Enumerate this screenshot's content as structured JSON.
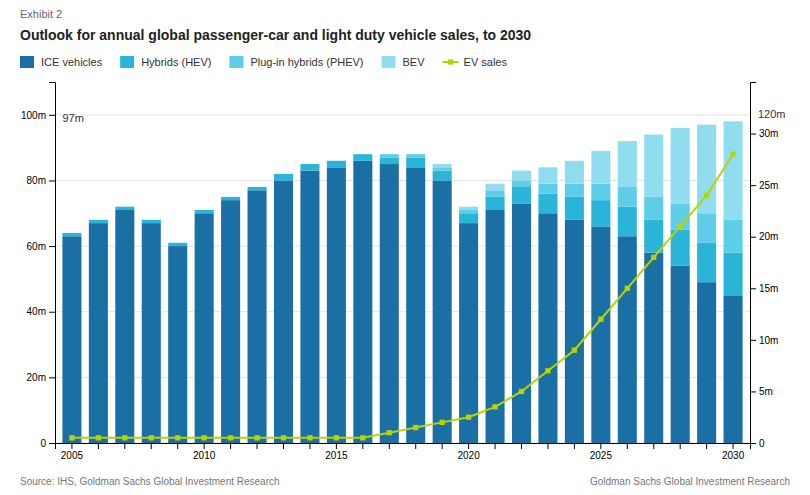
{
  "chart_data": {
    "type": "bar",
    "subtitle": "Exhibit 2",
    "title": "Outlook for annual global passenger-car and light duty vehicle sales, to 2030",
    "source": [
      "Source: IHS, Goldman Sachs Global Investment Research",
      "Goldman Sachs Global Investment Research"
    ],
    "categories": [
      "2005",
      null,
      null,
      null,
      null,
      "2010",
      null,
      null,
      null,
      null,
      "2015",
      null,
      null,
      null,
      null,
      "2020",
      null,
      null,
      null,
      null,
      "2025",
      null,
      null,
      null,
      null,
      "2030"
    ],
    "stacked": true,
    "grid": true,
    "legend": "top",
    "series": [
      {
        "name": "ICE vehicles",
        "color": "#1a6fa5",
        "values": [
          63,
          67,
          71,
          67,
          60,
          70,
          74,
          77,
          80,
          83,
          84,
          86,
          85,
          84,
          80,
          67,
          71,
          73,
          70,
          68,
          66,
          63,
          58,
          54,
          49,
          45
        ]
      },
      {
        "name": "Hybrids (HEV)",
        "color": "#2ab5d8",
        "values": [
          1,
          1,
          1,
          1,
          1,
          1,
          1,
          1,
          2,
          2,
          2,
          2,
          2,
          3,
          3,
          3,
          4,
          5,
          6,
          7,
          8,
          9,
          10,
          11,
          12,
          13
        ]
      },
      {
        "name": "Plug-in hybrids (PHEV)",
        "color": "#5ecde8",
        "values": [
          0,
          0,
          0,
          0,
          0,
          0,
          0,
          0,
          0,
          0,
          0,
          0,
          1,
          1,
          1,
          1,
          2,
          2,
          3,
          4,
          5,
          6,
          7,
          8,
          9,
          10
        ]
      },
      {
        "name": "BEV",
        "color": "#90ddf0",
        "values": [
          0,
          0,
          0,
          0,
          0,
          0,
          0,
          0,
          0,
          0,
          0,
          0,
          0,
          0,
          1,
          1,
          2,
          3,
          5,
          7,
          10,
          14,
          19,
          23,
          27,
          30
        ]
      },
      {
        "name": "EV sales",
        "type": "line",
        "axis": "y2",
        "marker": "square",
        "color": "#b8d400",
        "values": [
          0.5,
          0.5,
          0.5,
          0.5,
          0.5,
          0.5,
          0.5,
          0.5,
          0.5,
          0.5,
          0.5,
          0.5,
          1.0,
          1.5,
          2.0,
          2.5,
          3.5,
          5.0,
          7.0,
          9.0,
          12.0,
          15.0,
          18.0,
          21.0,
          24.0,
          28.0
        ]
      }
    ],
    "ylim": [
      0,
      110
    ],
    "yticks": [
      0,
      {
        "value": 20,
        "label": "20m"
      },
      {
        "value": 40,
        "label": "40m"
      },
      {
        "value": 60,
        "label": "60m"
      },
      {
        "value": 80,
        "label": "80m"
      },
      {
        "value": 100,
        "label": "100m"
      }
    ],
    "y2lim": [
      0,
      35
    ],
    "y2ticks": [
      0,
      {
        "value": 5,
        "label": "5m"
      },
      {
        "value": 10,
        "label": "10m"
      },
      {
        "value": 15,
        "label": "15m"
      },
      {
        "value": 20,
        "label": "20m"
      },
      {
        "value": 25,
        "label": "25m"
      },
      {
        "value": 30,
        "label": "30m"
      }
    ],
    "annotations": [
      {
        "text": "97m",
        "y": 97
      },
      {
        "text": "120m",
        "y": 98
      }
    ]
  }
}
